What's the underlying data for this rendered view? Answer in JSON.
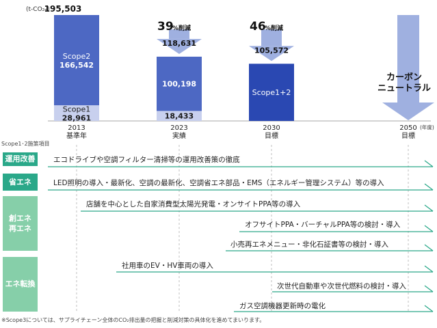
{
  "chart_data": {
    "type": "bar",
    "unit_label": "(t-CO₂ₑ)",
    "year_unit": "(年度)",
    "bars": [
      {
        "year": "2013",
        "label": "基準年",
        "segments": [
          {
            "name": "Scope1",
            "value": 28961,
            "value_label": "28,961",
            "color": "#c8d0ee",
            "text_color": "#1a1a1a"
          },
          {
            "name": "Scope2",
            "value": 166542,
            "value_label": "166,542",
            "color": "#4d68c3",
            "text_color": "#ffffff"
          }
        ],
        "total_label": "195,503"
      },
      {
        "year": "2023",
        "label": "実績",
        "segments": [
          {
            "name": "",
            "value": 18433,
            "value_label": "18,433",
            "color": "#c8d0ee",
            "text_color": "#1a1a1a"
          },
          {
            "name": "",
            "value": 100198,
            "value_label": "100,198",
            "color": "#4d68c3",
            "text_color": "#ffffff"
          }
        ],
        "total_label": "118,631",
        "reduction": "39",
        "reduction_suffix": "%削減"
      },
      {
        "year": "2030",
        "label": "目標",
        "segments": [
          {
            "name": "Scope1+2",
            "value": 105572,
            "value_label": "",
            "color": "#2a48b2",
            "text_color": "#ffffff"
          }
        ],
        "total_label": "105,572",
        "reduction": "46",
        "reduction_suffix": "%削減"
      },
      {
        "year": "2050",
        "label": "目標",
        "segments": [],
        "note_lines": [
          "カーボン",
          "ニュートラル"
        ]
      }
    ],
    "ylim": [
      0,
      195503
    ]
  },
  "measures_title": "Scope1･2施策項目",
  "categories": [
    {
      "label_lines": [
        "運用改善"
      ],
      "color": "#2aa889"
    },
    {
      "label_lines": [
        "省エネ"
      ],
      "color": "#2aa889"
    },
    {
      "label_lines": [
        "創エネ",
        "再エネ"
      ],
      "color": "#86cfa9"
    },
    {
      "label_lines": [
        "エネ転換"
      ],
      "color": "#86cfa9"
    }
  ],
  "measures": [
    {
      "text": "エコドライブや空調フィルター清掃等の運用改善策の徹底"
    },
    {
      "text": "LED照明の導入・最新化、空調の最新化、空調省エネ部品・EMS（エネルギー管理システム）等の導入"
    },
    {
      "text": "店舗を中心とした自家消費型太陽光発電・オンサイトPPA等の導入"
    },
    {
      "text": "オフサイトPPA・バーチャルPPA等の検討・導入"
    },
    {
      "text": "小売再エネメニュー・非化石証書等の検討・導入"
    },
    {
      "text": "社用車のEV・HV車両の導入"
    },
    {
      "text": "次世代自動車や次世代燃料の検討・導入"
    },
    {
      "text": "ガス空調機器更新時の電化"
    }
  ],
  "footnote": "※Scope3については、サプライチェーン全体のCO₂排出量の把握と削減対策の具体化を進めてまいります。",
  "colors": {
    "timeline": "#2aa889",
    "arrow": "#9fb0e0",
    "dashed": "#b0b0b0"
  }
}
